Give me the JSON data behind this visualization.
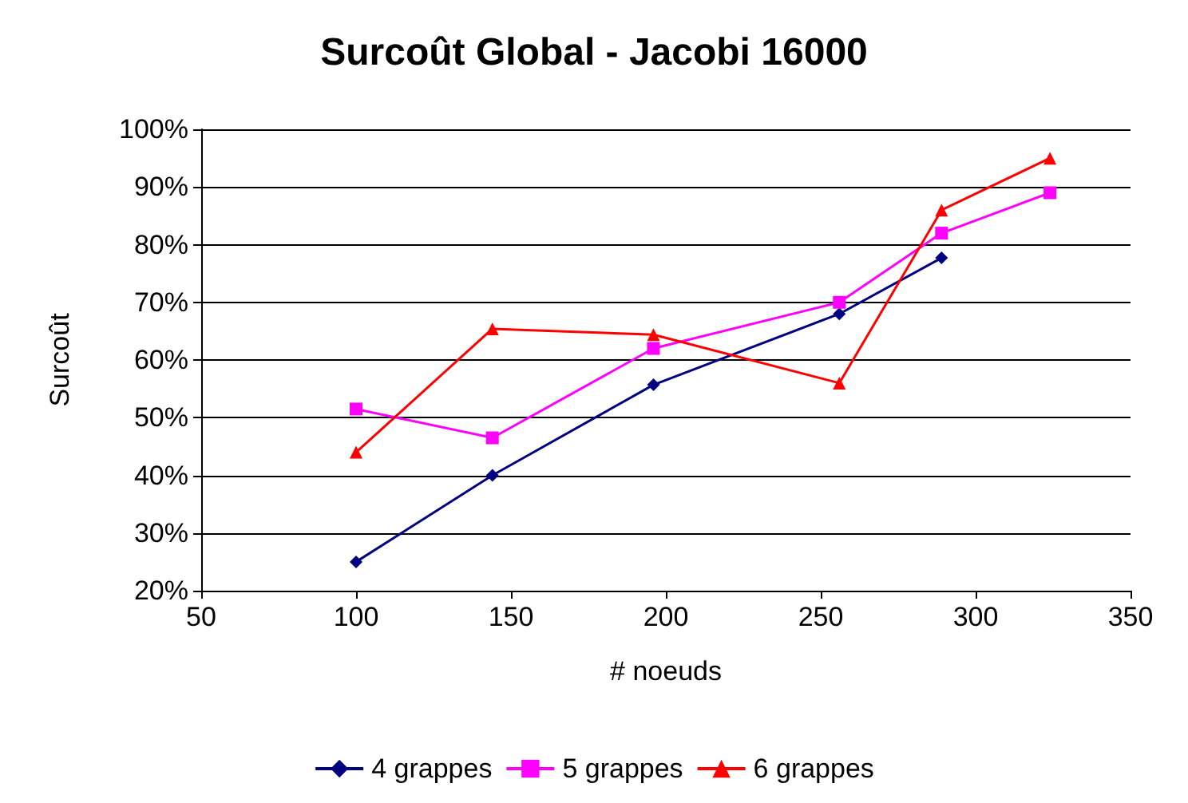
{
  "chart_data": {
    "type": "line",
    "title": "Surcoût Global - Jacobi 16000",
    "xlabel": "# noeuds",
    "ylabel": "Surcoût",
    "xlim": [
      50,
      350
    ],
    "xticks": [
      50,
      100,
      150,
      200,
      250,
      300,
      350
    ],
    "ylim": [
      20,
      100
    ],
    "yticks": [
      {
        "value": 20,
        "label": "20%"
      },
      {
        "value": 30,
        "label": "30%"
      },
      {
        "value": 40,
        "label": "40%"
      },
      {
        "value": 50,
        "label": "50%"
      },
      {
        "value": 60,
        "label": "60%"
      },
      {
        "value": 70,
        "label": "70%"
      },
      {
        "value": 80,
        "label": "80%"
      },
      {
        "value": 90,
        "label": "90%"
      },
      {
        "value": 100,
        "label": "100%"
      }
    ],
    "grid": "y",
    "legend": "bottom",
    "series": [
      {
        "name": "4 grappes",
        "color": "#000080",
        "marker": "diamond",
        "x": [
          100,
          144,
          196,
          256,
          289
        ],
        "values": [
          25,
          40,
          55.7,
          68,
          77.7
        ]
      },
      {
        "name": "5 grappes",
        "color": "#ff00ff",
        "marker": "square",
        "x": [
          100,
          144,
          196,
          256,
          289,
          324
        ],
        "values": [
          51.5,
          46.5,
          62,
          70,
          82,
          89
        ]
      },
      {
        "name": "6 grappes",
        "color": "#ff0000",
        "marker": "triangle",
        "x": [
          100,
          144,
          196,
          256,
          289,
          324
        ],
        "values": [
          44,
          65.4,
          64.4,
          56,
          86,
          95
        ]
      }
    ]
  }
}
